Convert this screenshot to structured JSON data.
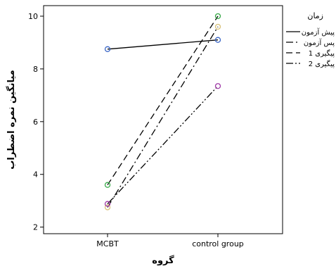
{
  "chart_data": {
    "type": "line",
    "title": "",
    "xlabel": "گروه",
    "ylabel": "میانگین نمره اضطراب",
    "categories": [
      "MCBT",
      "control group"
    ],
    "ylim": [
      1.75,
      10.4
    ],
    "yticks": [
      2,
      4,
      6,
      8,
      10
    ],
    "grid": false,
    "legend_title": "زمان",
    "legend_position": "right",
    "series": [
      {
        "name": "پیش آزمون",
        "values": [
          8.75,
          9.1
        ],
        "color": "#3a66c6",
        "dash": "solid"
      },
      {
        "name": "پس آزمون",
        "values": [
          2.75,
          9.6
        ],
        "color": "#d9c27a",
        "dash": "dash-dot"
      },
      {
        "name": "پیگیری 1",
        "values": [
          3.6,
          10.0
        ],
        "color": "#3aaa4a",
        "dash": "dashed"
      },
      {
        "name": "پیگیری 2",
        "values": [
          2.88,
          7.35
        ],
        "color": "#a03aa8",
        "dash": "dash-dot-dot"
      }
    ]
  }
}
